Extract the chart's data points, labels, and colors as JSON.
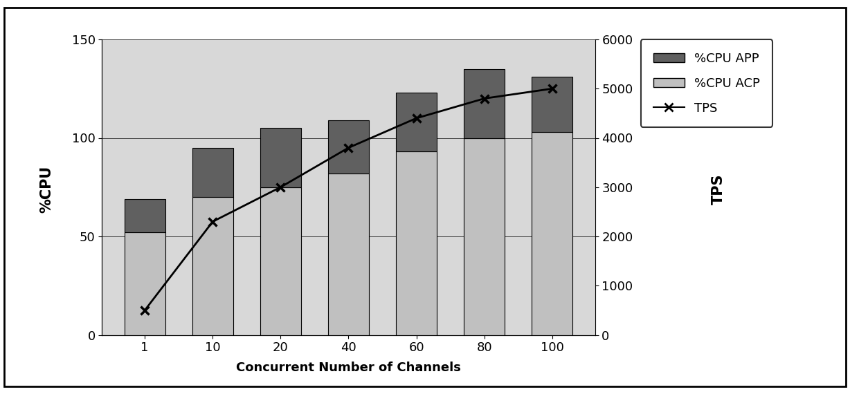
{
  "categories": [
    "1",
    "10",
    "20",
    "40",
    "60",
    "80",
    "100"
  ],
  "cpu_acp": [
    52,
    70,
    75,
    82,
    93,
    100,
    103
  ],
  "cpu_app": [
    17,
    25,
    30,
    27,
    30,
    35,
    28
  ],
  "tps": [
    500,
    2300,
    3000,
    3800,
    4400,
    4800,
    5000
  ],
  "color_acp": "#c0c0c0",
  "color_app": "#606060",
  "color_tps": "#000000",
  "ylabel_left": "%CPU",
  "ylabel_right": "TPS",
  "xlabel": "Concurrent Number of Channels",
  "ylim_left": [
    0,
    150
  ],
  "ylim_right": [
    0,
    6000
  ],
  "yticks_left": [
    0,
    50,
    100,
    150
  ],
  "yticks_right": [
    0,
    1000,
    2000,
    3000,
    4000,
    5000,
    6000
  ],
  "legend_labels": [
    "%CPU APP",
    "%CPU ACP",
    "TPS"
  ],
  "plot_area_color": "#d8d8d8",
  "outer_bg": "#ffffff"
}
